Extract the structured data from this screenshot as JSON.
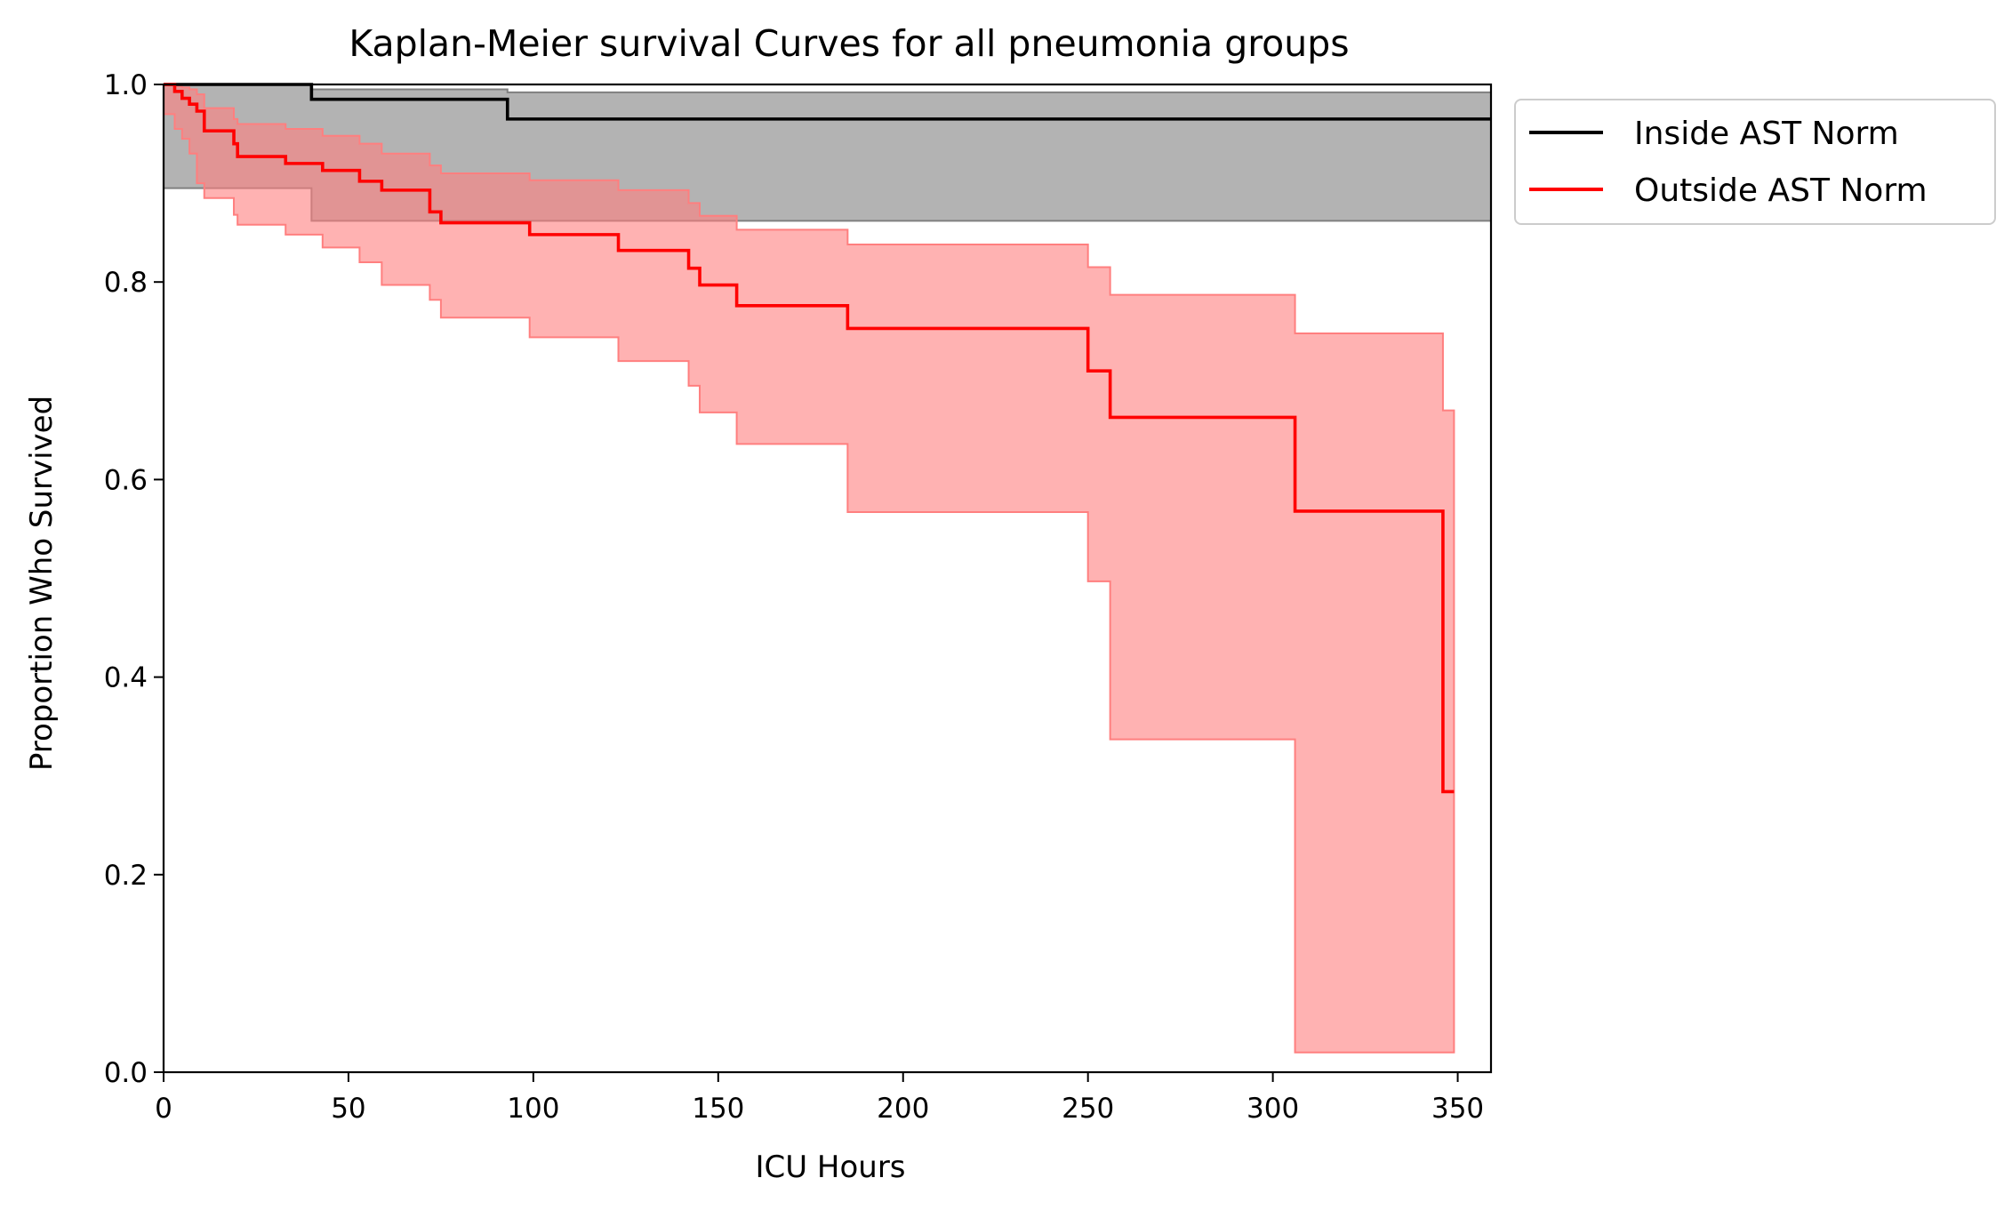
{
  "chart_data": {
    "type": "line",
    "subtype": "kaplan-meier step curves with confidence bands",
    "title": "Kaplan-Meier survival Curves for all pneumonia groups",
    "xlabel": "ICU Hours",
    "ylabel": "Proportion Who Survived",
    "xlim": [
      0,
      359
    ],
    "ylim": [
      0,
      1.0
    ],
    "xticks": [
      0,
      50,
      100,
      150,
      200,
      250,
      300,
      350
    ],
    "yticks": [
      0.0,
      0.2,
      0.4,
      0.6,
      0.8,
      1.0
    ],
    "xtick_labels": [
      "0",
      "50",
      "100",
      "150",
      "200",
      "250",
      "300",
      "350"
    ],
    "ytick_labels": [
      "0.0",
      "0.2",
      "0.4",
      "0.6",
      "0.8",
      "1.0"
    ],
    "grid": false,
    "legend_position": "outside-top-right",
    "series": [
      {
        "name": "Inside AST Norm",
        "color": "#000000",
        "band_color": "#808080",
        "x": [
          0,
          40,
          93,
          359
        ],
        "y": [
          1.0,
          0.985,
          0.965,
          0.965
        ],
        "ci_lower": [
          1.0,
          0.895,
          0.862,
          0.862
        ],
        "ci_upper": [
          1.0,
          0.995,
          0.992,
          0.992
        ]
      },
      {
        "name": "Outside AST Norm",
        "color": "#ff0000",
        "band_color": "#ff7f7f",
        "x": [
          0,
          3,
          5,
          7,
          9,
          11,
          19,
          20,
          33,
          43,
          53,
          59,
          72,
          75,
          99,
          123,
          142,
          145,
          155,
          185,
          250,
          256,
          306,
          346,
          349
        ],
        "y": [
          1.0,
          0.993,
          0.986,
          0.98,
          0.973,
          0.953,
          0.94,
          0.927,
          0.92,
          0.913,
          0.902,
          0.893,
          0.871,
          0.86,
          0.848,
          0.832,
          0.814,
          0.797,
          0.776,
          0.753,
          0.71,
          0.663,
          0.568,
          0.284,
          0.284
        ],
        "ci_lower": [
          1.0,
          0.97,
          0.955,
          0.945,
          0.93,
          0.9,
          0.885,
          0.868,
          0.858,
          0.848,
          0.835,
          0.82,
          0.797,
          0.782,
          0.764,
          0.744,
          0.72,
          0.695,
          0.668,
          0.636,
          0.567,
          0.497,
          0.337,
          0.02,
          0.02
        ],
        "ci_upper": [
          1.0,
          0.998,
          0.997,
          0.995,
          0.99,
          0.976,
          0.965,
          0.96,
          0.955,
          0.948,
          0.94,
          0.93,
          0.918,
          0.91,
          0.903,
          0.893,
          0.88,
          0.867,
          0.853,
          0.838,
          0.815,
          0.787,
          0.748,
          0.67,
          0.67
        ]
      }
    ]
  }
}
